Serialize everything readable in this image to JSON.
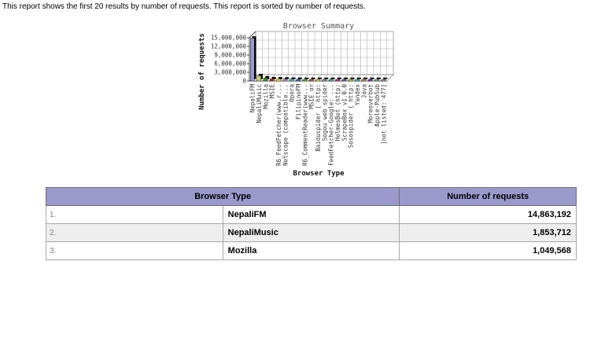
{
  "page": {
    "description": "This report shows the first 20 results by number of requests. This report is sorted by number of requests."
  },
  "colors": {
    "table_header_bg": "#9999cc",
    "table_row_alt_bg": "#eeeeee",
    "primary_bar": "#9999cc",
    "grid_line": "#b0b0b0",
    "axis_line": "#444444"
  },
  "chart_data": {
    "type": "bar",
    "style": "3d",
    "title": "Browser Summary",
    "xlabel": "Browser Type",
    "ylabel": "Number of requests",
    "ylim": [
      0,
      15000000
    ],
    "grid": true,
    "ytick_labels": [
      "0",
      "3,000,000",
      "6,000,000",
      "9,000,000",
      "12,000,000",
      "15,000,000"
    ],
    "categories": [
      "NepaliFM",
      "NepaliMusic",
      "Mozilla",
      "MSIE",
      "5. R6_FeedFetcher(www.r...",
      "6. Netscape (compatible...",
      "Opera",
      "FilipinoFM",
      "9. R6_CommentReader(www...",
      "MSIE or",
      "Baiduspider ( http:",
      "Sogou web spider",
      "13. FeedFetcher-Google: ...",
      "HolmesBot (http:",
      "ScrapeBox v1.0.0",
      "Sosospider ( http:",
      "Yandex",
      "Java",
      "Moreoverbot",
      "Apple-PubSub",
      "[not listed: 477]"
    ],
    "values": [
      14863192,
      1853712,
      1049568,
      780000,
      700000,
      650000,
      600000,
      560000,
      530000,
      500000,
      470000,
      440000,
      410000,
      390000,
      370000,
      350000,
      330000,
      310000,
      290000,
      270000,
      450000
    ],
    "bar_colors": [
      "#9999cc",
      "#cccc66",
      "#339933",
      "#cc3333",
      "#eeee33",
      "#cc99cc",
      "#33cccc",
      "#3366cc",
      "#66cc33",
      "#cc6633",
      "#eeee33",
      "#9999cc",
      "#33cc99",
      "#cc3399",
      "#6666cc",
      "#cccc33",
      "#33cccc",
      "#cc9933",
      "#9933cc",
      "#66cc66",
      "#9999cc"
    ]
  },
  "table": {
    "headers": [
      "Browser Type",
      "Number of requests"
    ],
    "rows": [
      {
        "rank": "1.",
        "browser": "NepaliFM",
        "requests": "14,863,192"
      },
      {
        "rank": "2.",
        "browser": "NepaliMusic",
        "requests": "1,853,712"
      },
      {
        "rank": "3.",
        "browser": "Mozilla",
        "requests": "1,049,568"
      }
    ]
  }
}
